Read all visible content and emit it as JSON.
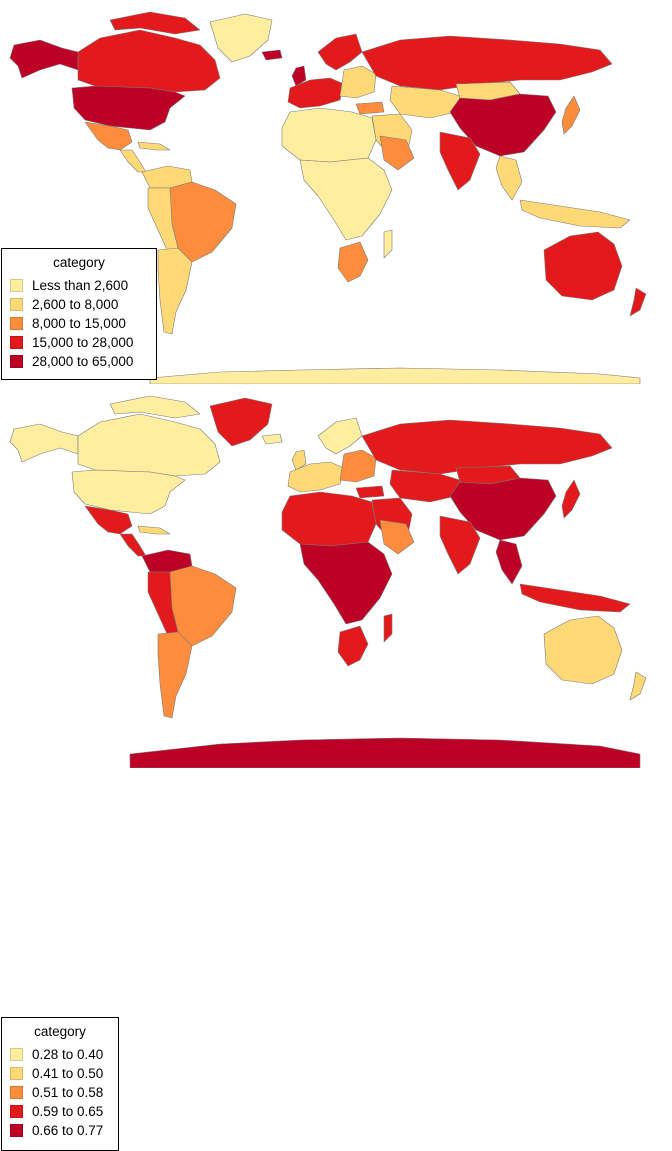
{
  "maps": [
    {
      "legend": {
        "title": "category",
        "items": [
          {
            "label": "Less than 2,600",
            "color": "#FFEDA0"
          },
          {
            "label": "2,600 to 8,000",
            "color": "#FED976"
          },
          {
            "label": "8,000 to 15,000",
            "color": "#FD8D3C"
          },
          {
            "label": "15,000 to 28,000",
            "color": "#E31A1C"
          },
          {
            "label": "28,000 to 65,000",
            "color": "#BD0026"
          }
        ]
      }
    },
    {
      "legend": {
        "title": "category",
        "items": [
          {
            "label": "0.28 to 0.40",
            "color": "#FFEDA0"
          },
          {
            "label": "0.41 to 0.50",
            "color": "#FED976"
          },
          {
            "label": "0.51 to 0.58",
            "color": "#FD8D3C"
          },
          {
            "label": "0.59 to 0.65",
            "color": "#E31A1C"
          },
          {
            "label": "0.66 to 0.77",
            "color": "#BD0026"
          }
        ]
      }
    }
  ]
}
